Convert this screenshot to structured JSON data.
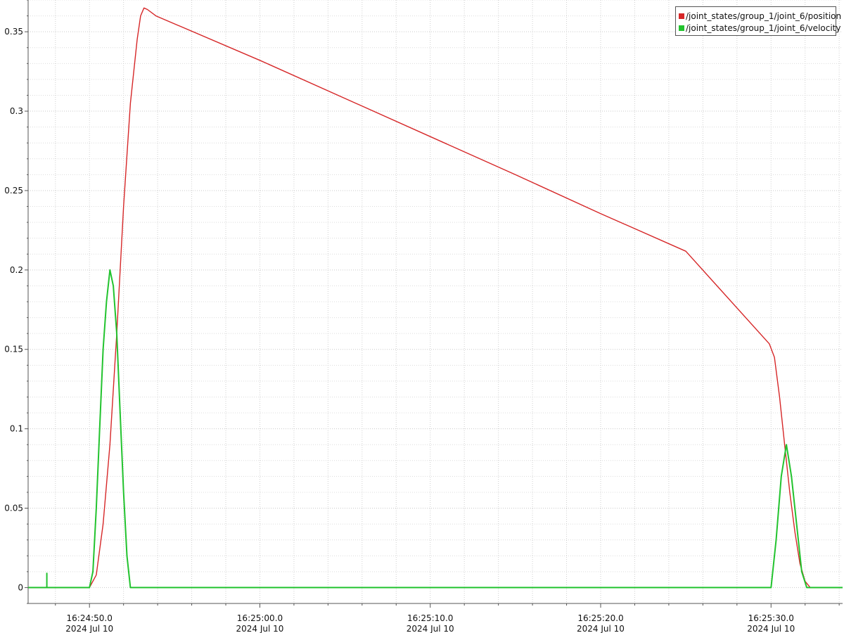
{
  "chart_data": {
    "type": "line",
    "title": "",
    "xlabel": "",
    "ylabel": "",
    "x_tick_labels": [
      {
        "time": "16:24:50.0",
        "date": "2024 Jul 10"
      },
      {
        "time": "16:25:00.0",
        "date": "2024 Jul 10"
      },
      {
        "time": "16:25:10.0",
        "date": "2024 Jul 10"
      },
      {
        "time": "16:25:20.0",
        "date": "2024 Jul 10"
      },
      {
        "time": "16:25:30.0",
        "date": "2024 Jul 10"
      }
    ],
    "y_tick_labels": [
      "0",
      "0.05",
      "0.1",
      "0.15",
      "0.2",
      "0.25",
      "0.3",
      "0.35"
    ],
    "xlim": [
      "16:24:46.4",
      "16:25:34.2"
    ],
    "ylim": [
      -0.01,
      0.37
    ],
    "grid": true,
    "legend_position": "top-right",
    "series": [
      {
        "name": "/joint_states/group_1/joint_6/position",
        "color": "#d62728",
        "x": [
          "16:24:46.4",
          "16:24:50.0",
          "16:24:50.4",
          "16:24:50.8",
          "16:24:51.2",
          "16:24:51.6",
          "16:24:52.0",
          "16:24:52.4",
          "16:24:52.8",
          "16:24:53.0",
          "16:24:53.2",
          "16:24:53.4",
          "16:24:53.9",
          "16:25:00.0",
          "16:25:05.0",
          "16:25:10.0",
          "16:25:15.0",
          "16:25:20.0",
          "16:25:25.0",
          "16:25:29.9",
          "16:25:30.2",
          "16:25:30.5",
          "16:25:30.8",
          "16:25:31.1",
          "16:25:31.4",
          "16:25:31.7",
          "16:25:32.0",
          "16:25:32.3",
          "16:25:32.6",
          "16:25:34.2"
        ],
        "y": [
          0,
          0,
          0.008,
          0.04,
          0.09,
          0.16,
          0.24,
          0.305,
          0.345,
          0.36,
          0.365,
          0.364,
          0.36,
          0.332,
          0.308,
          0.284,
          0.26,
          0.2355,
          0.2118,
          0.1535,
          0.145,
          0.12,
          0.09,
          0.06,
          0.035,
          0.015,
          0.004,
          0,
          0,
          0
        ]
      },
      {
        "name": "/joint_states/group_1/joint_6/velocity",
        "color": "#22c32e",
        "x": [
          "16:24:46.4",
          "16:24:47.5",
          "16:24:47.5",
          "16:24:47.5",
          "16:24:50.0",
          "16:24:50.2",
          "16:24:50.4",
          "16:24:50.6",
          "16:24:50.8",
          "16:24:51.0",
          "16:24:51.2",
          "16:24:51.4",
          "16:24:51.6",
          "16:24:51.8",
          "16:24:52.0",
          "16:24:52.2",
          "16:24:52.4",
          "16:24:52.6",
          "16:24:52.8",
          "16:24:53.0",
          "16:24:53.9",
          "16:25:30.0",
          "16:25:30.3",
          "16:25:30.6",
          "16:25:30.9",
          "16:25:31.2",
          "16:25:31.5",
          "16:25:31.8",
          "16:25:32.1",
          "16:25:32.4",
          "16:25:34.2"
        ],
        "y": [
          0,
          0,
          0.009,
          0,
          0,
          0.01,
          0.05,
          0.1,
          0.15,
          0.18,
          0.2,
          0.19,
          0.16,
          0.11,
          0.06,
          0.02,
          0,
          0,
          0,
          0,
          0,
          0,
          0.03,
          0.07,
          0.09,
          0.07,
          0.04,
          0.01,
          0,
          0,
          0
        ]
      }
    ]
  }
}
